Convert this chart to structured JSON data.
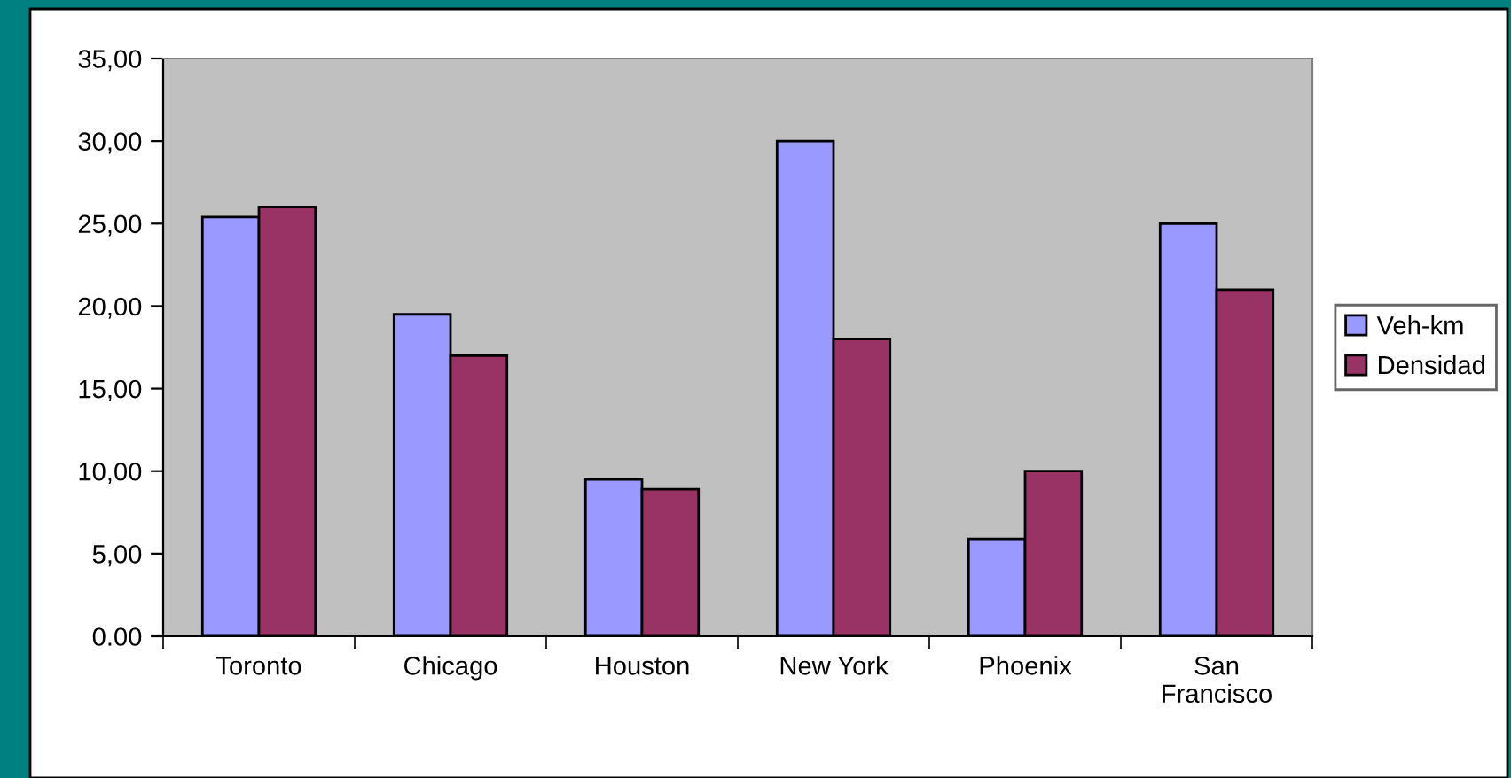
{
  "chart_data": {
    "type": "bar",
    "categories": [
      "Toronto",
      "Chicago",
      "Houston",
      "New York",
      "Phoenix",
      "San\nFrancisco"
    ],
    "series": [
      {
        "name": "Veh-km",
        "color": "#9999ff",
        "values": [
          25.4,
          19.5,
          9.5,
          30.0,
          5.9,
          25.0
        ]
      },
      {
        "name": "Densidad",
        "color": "#993366",
        "values": [
          26.0,
          17.0,
          8.9,
          18.0,
          10.0,
          21.0
        ]
      }
    ],
    "ylim": [
      0,
      35
    ],
    "yticks": [
      {
        "value": 0,
        "label": "0.00"
      },
      {
        "value": 5,
        "label": "5,00"
      },
      {
        "value": 10,
        "label": "10,00"
      },
      {
        "value": 15,
        "label": "15,00"
      },
      {
        "value": 20,
        "label": "20,00"
      },
      {
        "value": 25,
        "label": "25,00"
      },
      {
        "value": 30,
        "label": "30,00"
      },
      {
        "value": 35,
        "label": "35,00"
      }
    ],
    "grid": false,
    "legend": "right"
  }
}
